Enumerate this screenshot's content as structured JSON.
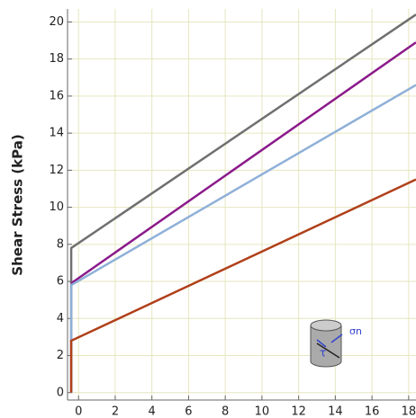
{
  "chart_data": {
    "type": "line",
    "ylabel": "Shear Stress (kPa)",
    "x": [
      -0.4,
      -0.4,
      18.4
    ],
    "series": [
      {
        "color": "#707070",
        "values": [
          0,
          7.8,
          20.4
        ]
      },
      {
        "color": "#8b1a8b",
        "values": [
          null,
          5.9,
          18.9
        ]
      },
      {
        "color": "#8fb0d8",
        "values": [
          0,
          5.8,
          16.6
        ]
      },
      {
        "color": "#b0401a",
        "values": [
          0,
          2.8,
          11.5
        ]
      }
    ],
    "xlim": [
      -0.6,
      18.4
    ],
    "xticks": [
      0,
      2,
      4,
      6,
      8,
      10,
      12,
      14,
      16,
      18
    ],
    "ylim": [
      -0.4,
      20.7
    ],
    "yticks": [
      0,
      2,
      4,
      6,
      8,
      10,
      12,
      14,
      16,
      18,
      20
    ],
    "grid": true,
    "annotations": [
      "σn",
      "τ"
    ]
  }
}
